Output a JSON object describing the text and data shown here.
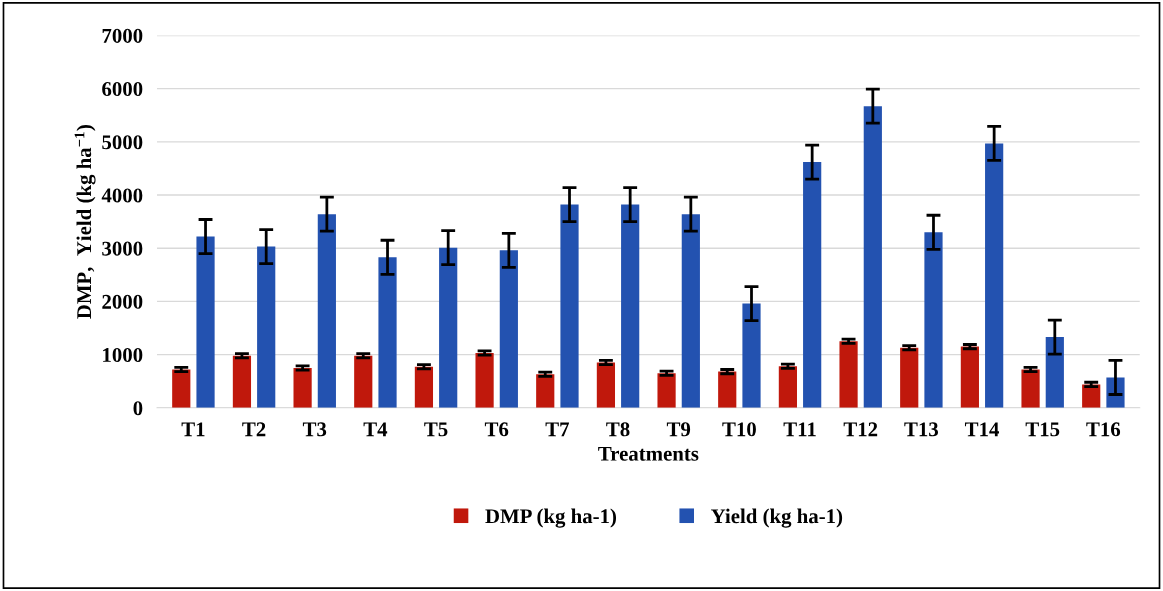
{
  "chart_data": {
    "type": "bar",
    "xlabel": "Treatments",
    "ylabel": "DMP,  Yield (kg ha$^{−1}$)",
    "categories": [
      "T1",
      "T2",
      "T3",
      "T4",
      "T5",
      "T6",
      "T7",
      "T8",
      "T9",
      "T10",
      "T11",
      "T12",
      "T13",
      "T14",
      "T15",
      "T16"
    ],
    "series": [
      {
        "name": "DMP (kg ha-1)",
        "color": "#c0180c",
        "values": [
          720,
          980,
          750,
          980,
          770,
          1030,
          630,
          850,
          650,
          680,
          780,
          1250,
          1130,
          1150,
          720,
          440
        ],
        "errors": [
          40,
          40,
          40,
          40,
          40,
          40,
          40,
          40,
          40,
          40,
          40,
          40,
          40,
          40,
          40,
          40
        ]
      },
      {
        "name": "Yield (kg ha-1)",
        "color": "#2352b0",
        "values": [
          3220,
          3030,
          3640,
          2830,
          3010,
          2960,
          3820,
          3820,
          3640,
          1960,
          4620,
          5670,
          3300,
          4970,
          1330,
          570
        ],
        "errors": [
          320,
          320,
          320,
          320,
          320,
          320,
          320,
          320,
          320,
          320,
          320,
          320,
          320,
          320,
          320,
          320
        ]
      }
    ],
    "ylim": [
      0,
      7000
    ],
    "yticks": [
      0,
      1000,
      2000,
      3000,
      4000,
      5000,
      6000,
      7000
    ],
    "grid": "y",
    "legend": "bottom"
  }
}
